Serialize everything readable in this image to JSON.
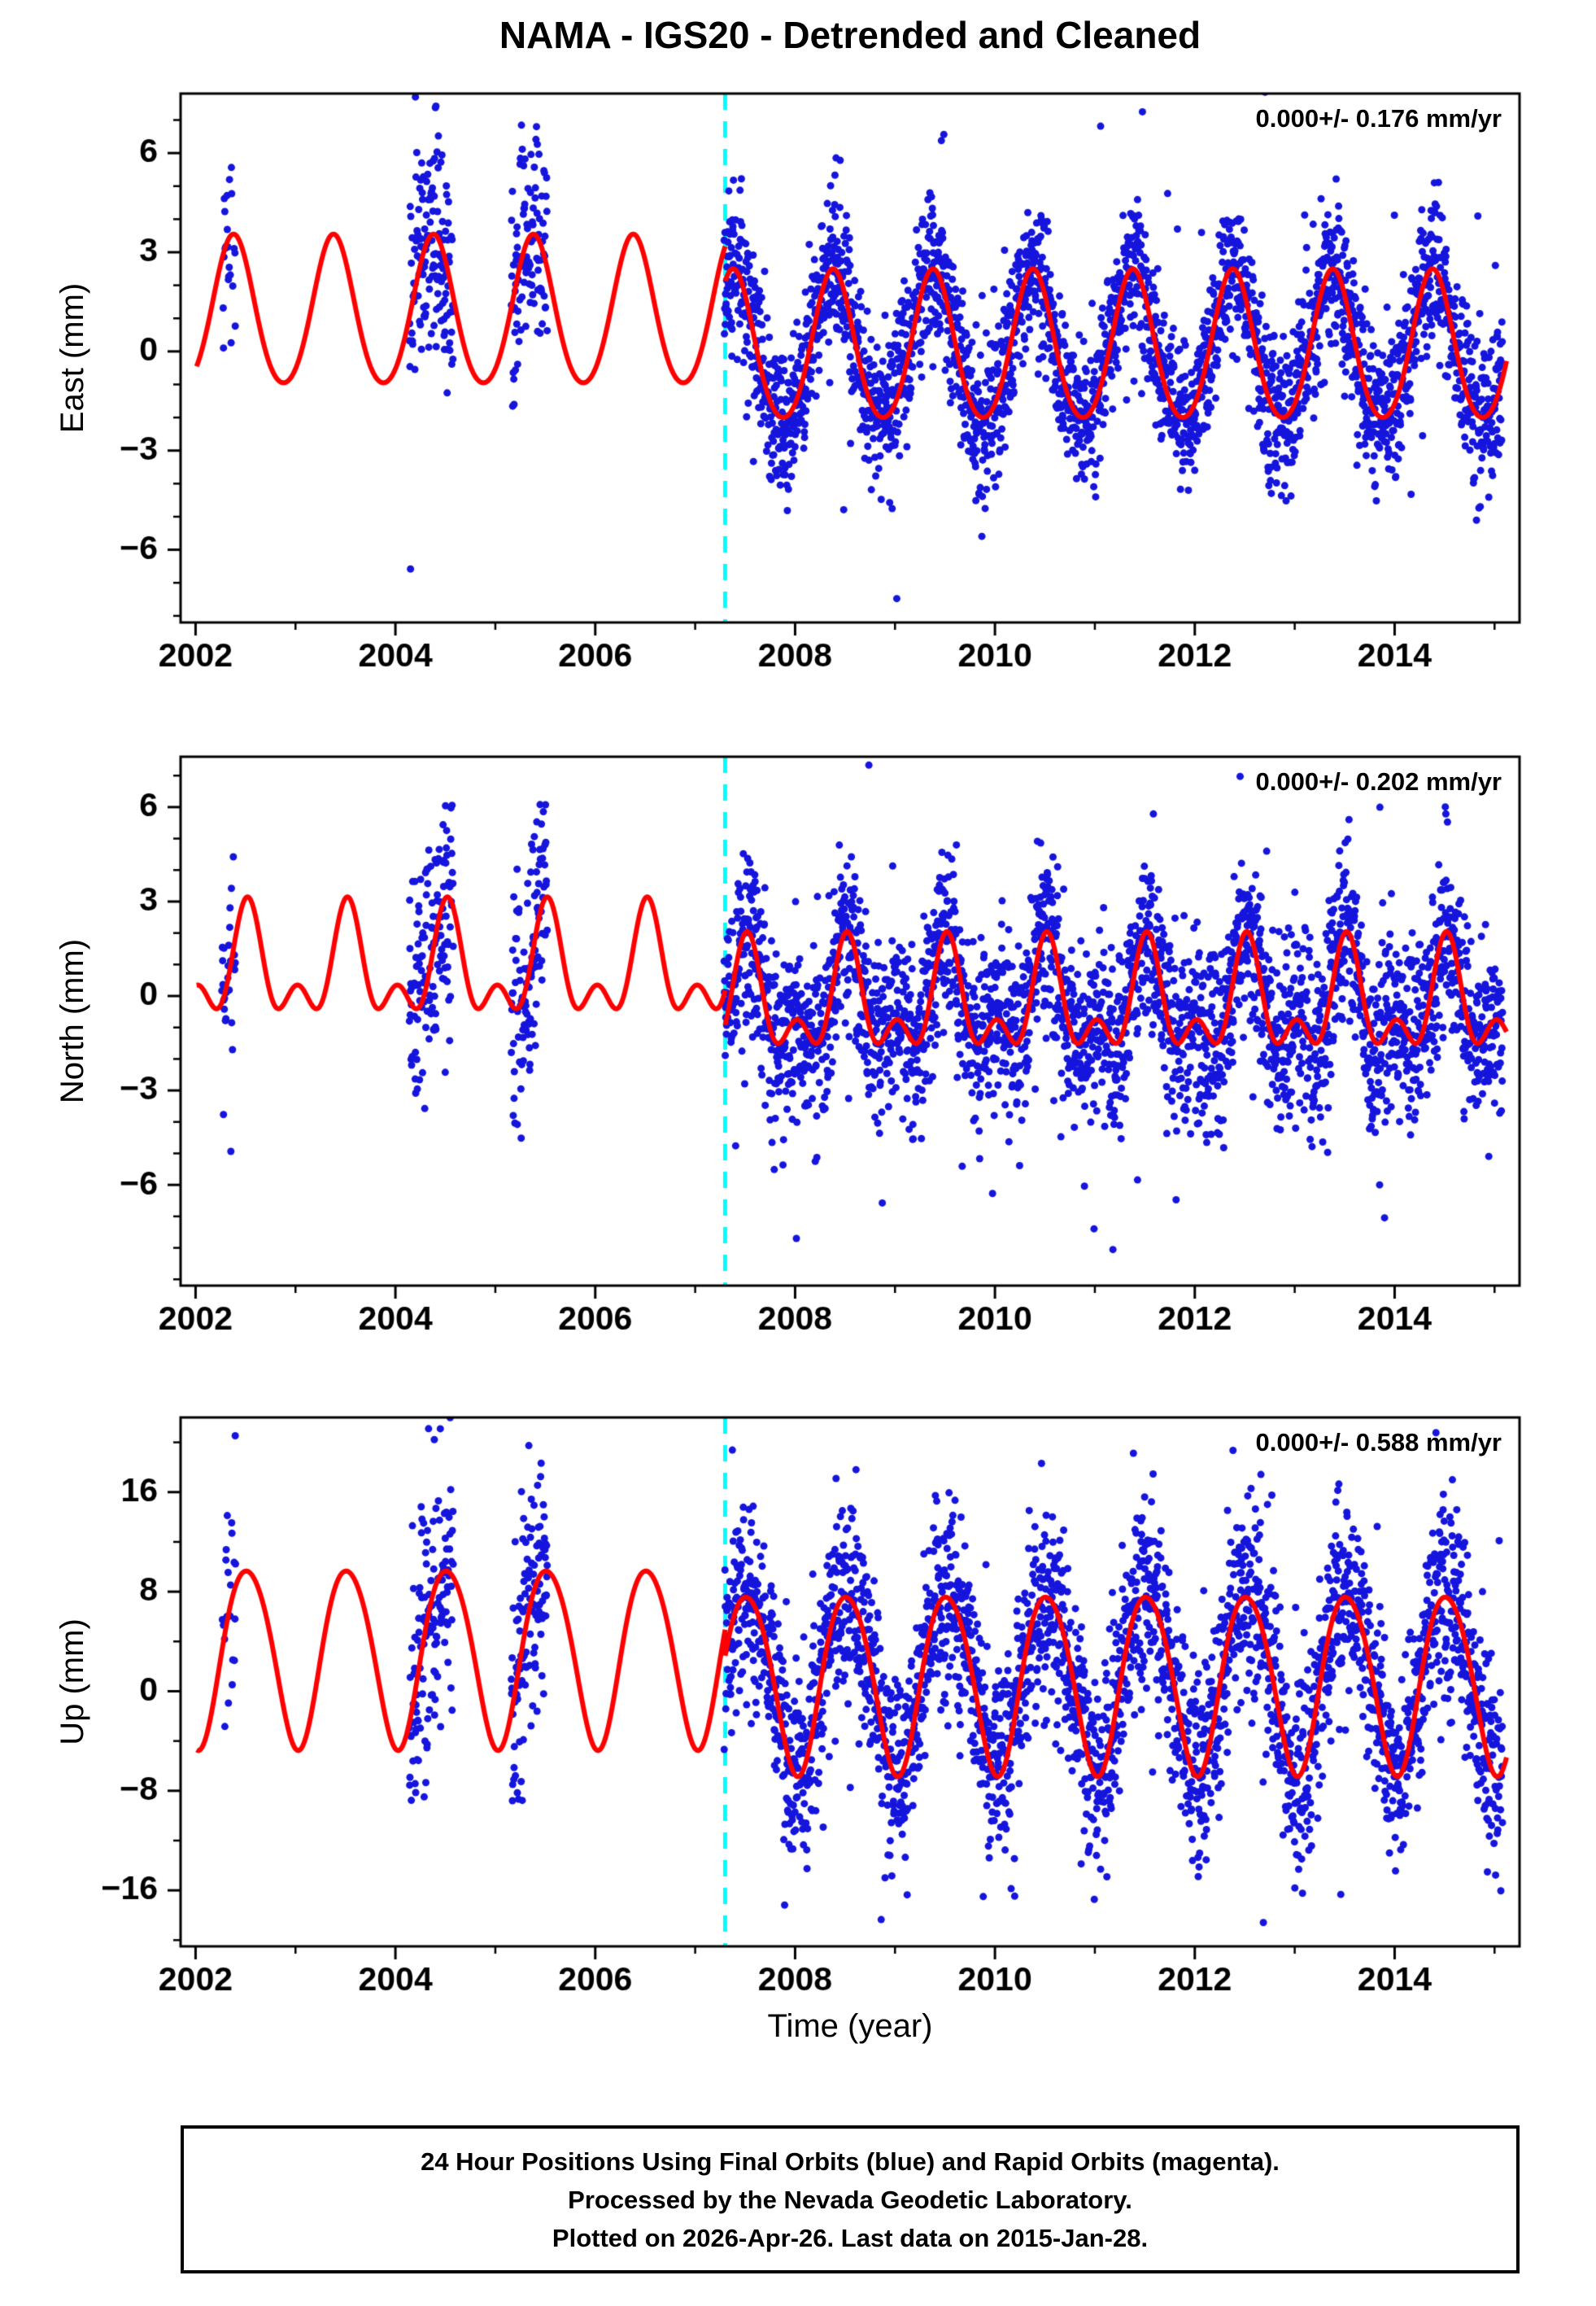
{
  "title": "NAMA - IGS20 - Detrended and Cleaned",
  "xlabel": "Time (year)",
  "footer": {
    "line1": "24 Hour Positions Using Final Orbits (blue) and Rapid Orbits (magenta).",
    "line2": "Processed by the Nevada Geodetic Laboratory.",
    "line3": "Plotted on 2026-Apr-26. Last data on 2015-Jan-28."
  },
  "colors": {
    "point_blue": "#1515dd",
    "model_red": "#ff0000",
    "event_cyan": "#00ffff",
    "frame_black": "#000000",
    "background": "#ffffff"
  },
  "chart_data": [
    {
      "type": "scatter",
      "id": "east",
      "ylabel": "East (mm)",
      "annotation": "0.000+/- 0.176 mm/yr",
      "rate": 0.0,
      "rate_uncertainty": 0.176,
      "rate_units": "mm/yr",
      "xlim": [
        2001.85,
        2015.25
      ],
      "ylim": [
        -8.2,
        7.8
      ],
      "xticks": [
        2002,
        2004,
        2006,
        2008,
        2010,
        2012,
        2014
      ],
      "yticks": [
        -6,
        -3,
        0,
        3,
        6
      ],
      "x_minor_step": 1,
      "y_minor_step": 1,
      "event_x": 2007.3,
      "grid": false,
      "legend_position": "none",
      "series": [
        {
          "name": "daily position estimates",
          "color": "#1515dd",
          "style": "points"
        },
        {
          "name": "seasonal model fit",
          "color": "#ff0000",
          "style": "line"
        },
        {
          "name": "step epoch",
          "color": "#00ffff",
          "style": "dashed-vline"
        }
      ],
      "model": {
        "mean_before": 1.1,
        "mean_after": 0.05,
        "annual_amp": 2.25,
        "annual_peak": 0.38,
        "semi_amp": 0.2,
        "semi_peak": 0.38
      },
      "scatter": {
        "seed": 11,
        "noise_sd": 1.15,
        "noise_sd_before": 1.7,
        "outlier_rate": 0.02,
        "outlier_scale": 3.0,
        "segments": [
          [
            2002.26,
            2002.4,
            0.5
          ],
          [
            2004.14,
            2004.58,
            0.85
          ],
          [
            2005.16,
            2005.52,
            0.85
          ],
          [
            2007.29,
            2015.08,
            0.97
          ]
        ]
      }
    },
    {
      "type": "scatter",
      "id": "north",
      "ylabel": "North (mm)",
      "annotation": "0.000+/- 0.202 mm/yr",
      "rate": 0.0,
      "rate_uncertainty": 0.202,
      "rate_units": "mm/yr",
      "xlim": [
        2001.85,
        2015.25
      ],
      "ylim": [
        -9.2,
        7.6
      ],
      "xticks": [
        2002,
        2004,
        2006,
        2008,
        2010,
        2012,
        2014
      ],
      "yticks": [
        -6,
        -3,
        0,
        3,
        6
      ],
      "x_minor_step": 1,
      "y_minor_step": 1,
      "event_x": 2007.3,
      "grid": false,
      "legend_position": "none",
      "series": [
        {
          "name": "daily position estimates",
          "color": "#1515dd",
          "style": "points"
        },
        {
          "name": "seasonal model fit",
          "color": "#ff0000",
          "style": "line"
        },
        {
          "name": "step epoch",
          "color": "#00ffff",
          "style": "dashed-vline"
        }
      ],
      "model": {
        "mean_before": 0.8,
        "mean_after": -0.3,
        "annual_amp": 1.4,
        "annual_peak": 0.52,
        "semi_amp": 0.95,
        "semi_peak": 0.02
      },
      "scatter": {
        "seed": 22,
        "noise_sd": 1.45,
        "noise_sd_before": 1.9,
        "outlier_rate": 0.025,
        "outlier_scale": 3.0,
        "segments": [
          [
            2002.26,
            2002.4,
            0.5
          ],
          [
            2004.14,
            2004.58,
            0.85
          ],
          [
            2005.16,
            2005.52,
            0.85
          ],
          [
            2007.29,
            2015.08,
            0.97
          ]
        ]
      }
    },
    {
      "type": "scatter",
      "id": "up",
      "ylabel": "Up (mm)",
      "annotation": "0.000+/- 0.588 mm/yr",
      "rate": 0.0,
      "rate_uncertainty": 0.588,
      "rate_units": "mm/yr",
      "xlim": [
        2001.85,
        2015.25
      ],
      "ylim": [
        -20.5,
        22.0
      ],
      "xticks": [
        2002,
        2004,
        2006,
        2008,
        2010,
        2012,
        2014
      ],
      "yticks": [
        -16,
        -8,
        0,
        8,
        16
      ],
      "x_minor_step": 1,
      "y_minor_step": 4,
      "event_x": 2007.3,
      "grid": false,
      "legend_position": "none",
      "series": [
        {
          "name": "daily position estimates",
          "color": "#1515dd",
          "style": "points"
        },
        {
          "name": "seasonal model fit",
          "color": "#ff0000",
          "style": "line"
        },
        {
          "name": "step epoch",
          "color": "#00ffff",
          "style": "dashed-vline"
        }
      ],
      "model": {
        "mean_before": 3.0,
        "mean_after": 0.9,
        "annual_amp": 7.2,
        "annual_peak": 0.52,
        "semi_amp": 0.6,
        "semi_peak": 0.3
      },
      "scatter": {
        "seed": 33,
        "noise_sd": 3.9,
        "noise_sd_before": 5.0,
        "outlier_rate": 0.02,
        "outlier_scale": 2.5,
        "segments": [
          [
            2002.26,
            2002.4,
            0.5
          ],
          [
            2004.14,
            2004.58,
            0.85
          ],
          [
            2005.16,
            2005.52,
            0.85
          ],
          [
            2007.29,
            2015.08,
            0.97
          ]
        ]
      }
    }
  ]
}
